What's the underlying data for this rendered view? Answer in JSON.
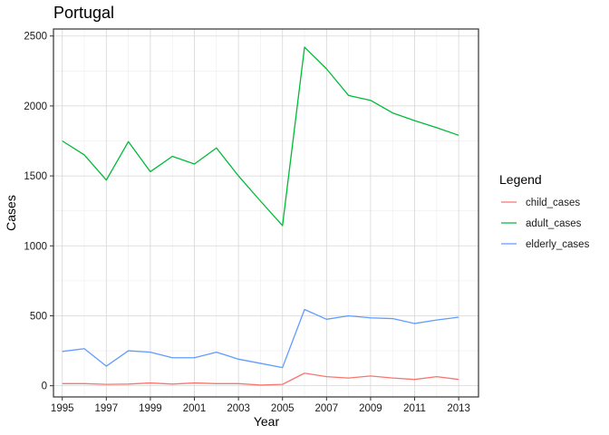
{
  "chart_data": {
    "type": "line",
    "title": "Portugal",
    "xlabel": "Year",
    "ylabel": "Cases",
    "x": [
      1995,
      1996,
      1997,
      1998,
      1999,
      2000,
      2001,
      2002,
      2003,
      2004,
      2005,
      2006,
      2007,
      2008,
      2009,
      2010,
      2011,
      2012,
      2013
    ],
    "x_ticks": [
      1995,
      1997,
      1999,
      2001,
      2003,
      2005,
      2007,
      2009,
      2011,
      2013
    ],
    "y_ticks": [
      0,
      500,
      1000,
      1500,
      2000,
      2500
    ],
    "xlim": [
      1994.6,
      2013.9
    ],
    "ylim": [
      -80,
      2550
    ],
    "grid": true,
    "legend": {
      "title": "Legend",
      "position": "right"
    },
    "series": [
      {
        "name": "child_cases",
        "color": "#F8766D",
        "values": [
          15,
          15,
          10,
          12,
          20,
          12,
          20,
          15,
          15,
          5,
          10,
          90,
          65,
          55,
          70,
          55,
          45,
          65,
          45
        ]
      },
      {
        "name": "adult_cases",
        "color": "#00BA38",
        "values": [
          1750,
          1650,
          1470,
          1745,
          1530,
          1640,
          1585,
          1700,
          1500,
          1320,
          1145,
          2420,
          2265,
          2075,
          2040,
          1950,
          1895,
          1845,
          1790
        ]
      },
      {
        "name": "elderly_cases",
        "color": "#619CFF",
        "values": [
          245,
          265,
          140,
          250,
          240,
          200,
          200,
          240,
          190,
          160,
          130,
          545,
          475,
          500,
          485,
          480,
          445,
          470,
          490
        ]
      }
    ]
  }
}
